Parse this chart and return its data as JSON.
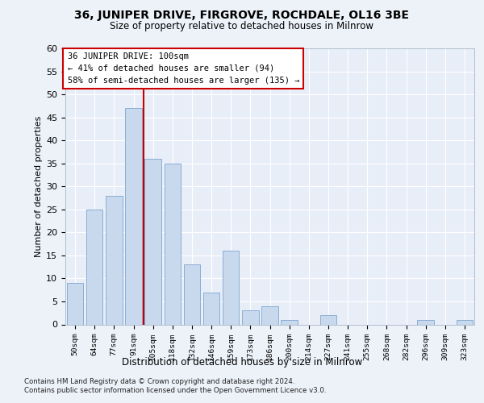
{
  "title1": "36, JUNIPER DRIVE, FIRGROVE, ROCHDALE, OL16 3BE",
  "title2": "Size of property relative to detached houses in Milnrow",
  "xlabel": "Distribution of detached houses by size in Milnrow",
  "ylabel": "Number of detached properties",
  "categories": [
    "50sqm",
    "64sqm",
    "77sqm",
    "91sqm",
    "105sqm",
    "118sqm",
    "132sqm",
    "146sqm",
    "159sqm",
    "173sqm",
    "186sqm",
    "200sqm",
    "214sqm",
    "227sqm",
    "241sqm",
    "255sqm",
    "268sqm",
    "282sqm",
    "296sqm",
    "309sqm",
    "323sqm"
  ],
  "values": [
    9,
    25,
    28,
    47,
    36,
    35,
    13,
    7,
    16,
    3,
    4,
    1,
    0,
    2,
    0,
    0,
    0,
    0,
    1,
    0,
    1
  ],
  "bar_color": "#c8d9ee",
  "bar_edge_color": "#8aadd4",
  "vline_color": "#cc0000",
  "annotation_lines": [
    "36 JUNIPER DRIVE: 100sqm",
    "← 41% of detached houses are smaller (94)",
    "58% of semi-detached houses are larger (135) →"
  ],
  "annotation_box_color": "#ffffff",
  "annotation_box_edge": "#cc0000",
  "footnote1": "Contains HM Land Registry data © Crown copyright and database right 2024.",
  "footnote2": "Contains public sector information licensed under the Open Government Licence v3.0.",
  "ylim": [
    0,
    60
  ],
  "yticks": [
    0,
    5,
    10,
    15,
    20,
    25,
    30,
    35,
    40,
    45,
    50,
    55,
    60
  ],
  "fig_bg_color": "#edf2f9",
  "plot_bg_color": "#e8eef8"
}
